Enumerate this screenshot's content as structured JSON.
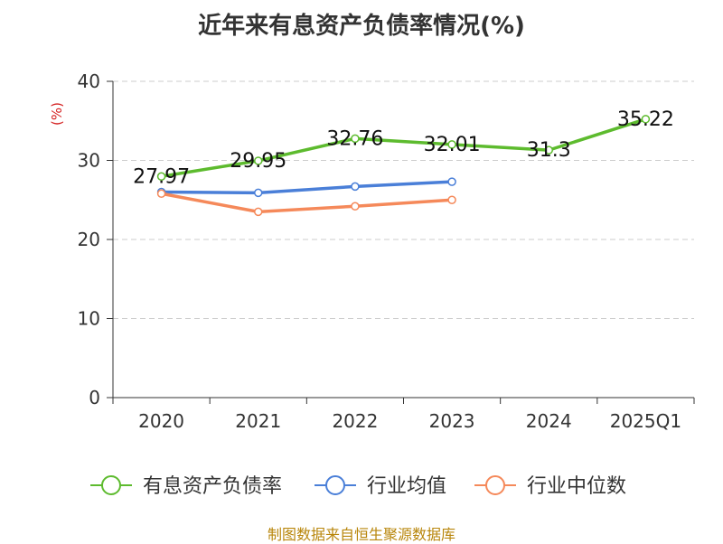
{
  "title": "近年来有息资产负债率情况(%)",
  "footer": "制图数据来自恒生聚源数据库",
  "chart_data": {
    "type": "line",
    "title": "近年来有息资产负债率情况(%)",
    "ylabel": "(%)",
    "categories": [
      "2020",
      "2021",
      "2022",
      "2023",
      "2024",
      "2025Q1"
    ],
    "ylim": [
      0,
      40
    ],
    "yticks": [
      0,
      10,
      20,
      30,
      40
    ],
    "grid": true,
    "legend_position": "bottom",
    "series": [
      {
        "name": "有息资产负债率",
        "color": "#5dbb2e",
        "values": [
          27.97,
          29.95,
          32.76,
          32.01,
          31.3,
          35.22
        ],
        "labels": [
          "27.97",
          "29.95",
          "32.76",
          "32.01",
          "31.3",
          "35.22"
        ]
      },
      {
        "name": "行业均值",
        "color": "#4a7fd8",
        "values": [
          26.0,
          25.9,
          26.7,
          27.3,
          null,
          null
        ]
      },
      {
        "name": "行业中位数",
        "color": "#f5895a",
        "values": [
          25.8,
          23.5,
          24.2,
          25.0,
          null,
          null
        ]
      }
    ]
  }
}
